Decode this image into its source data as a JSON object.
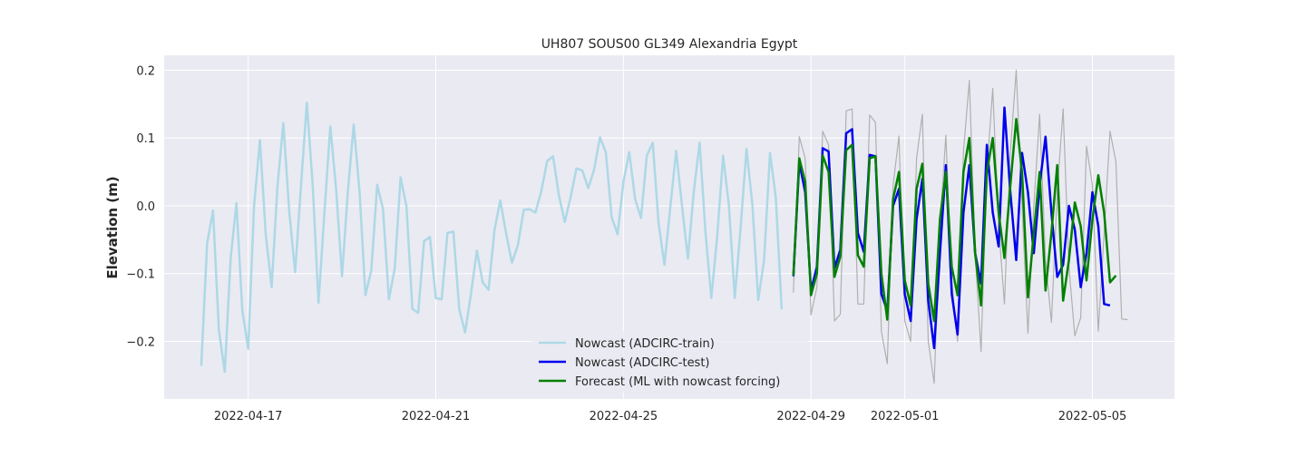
{
  "chart_data": {
    "type": "line",
    "title": "UH807 SOUS00 GL349 Alexandria Egypt",
    "xlabel": "",
    "ylabel": "Elevation (m)",
    "xlim": [
      "2022-04-15 05:00",
      "2022-05-06 18:00"
    ],
    "ylim": [
      -0.285,
      0.222
    ],
    "x_ticks": [
      "2022-04-17",
      "2022-04-21",
      "2022-04-25",
      "2022-04-29",
      "2022-05-01",
      "2022-05-05"
    ],
    "y_ticks": [
      -0.2,
      -0.1,
      0.0,
      0.1,
      0.2
    ],
    "y_tick_labels": [
      "−0.2",
      "−0.1",
      "0.0",
      "0.1",
      "0.2"
    ],
    "grid": true,
    "legend": "bottom-center",
    "series": [
      {
        "name": "Nowcast (ADCIRC-train)",
        "color": "#add8e6",
        "linewidth": 2.5,
        "start": "2022-04-16 00:00",
        "step_hours": 3,
        "y": [
          -0.236,
          -0.055,
          -0.007,
          -0.183,
          -0.245,
          -0.078,
          0.004,
          -0.155,
          -0.211,
          -0.001,
          0.097,
          -0.042,
          -0.12,
          0.03,
          0.122,
          -0.008,
          -0.098,
          0.028,
          0.152,
          0.03,
          -0.143,
          -0.01,
          0.117,
          0.025,
          -0.104,
          0.02,
          0.12,
          0.02,
          -0.132,
          -0.095,
          0.031,
          -0.005,
          -0.138,
          -0.092,
          0.042,
          -0.001,
          -0.152,
          -0.158,
          -0.052,
          -0.046,
          -0.136,
          -0.138,
          -0.04,
          -0.038,
          -0.153,
          -0.187,
          -0.13,
          -0.066,
          -0.113,
          -0.124,
          -0.036,
          0.008,
          -0.041,
          -0.084,
          -0.058,
          -0.006,
          -0.005,
          -0.01,
          0.022,
          0.066,
          0.073,
          0.015,
          -0.024,
          0.013,
          0.055,
          0.052,
          0.026,
          0.053,
          0.101,
          0.079,
          -0.017,
          -0.042,
          0.035,
          0.079,
          0.01,
          -0.018,
          0.074,
          0.093,
          -0.025,
          -0.087,
          -0.002,
          0.081,
          0.0,
          -0.078,
          0.02,
          0.093,
          -0.04,
          -0.136,
          -0.045,
          0.074,
          0.0,
          -0.136,
          -0.032,
          0.084,
          0.002,
          -0.139,
          -0.08,
          0.078,
          0.012,
          -0.153
        ]
      },
      {
        "name": "Nowcast (ADCIRC-test)",
        "color": "#0000ee",
        "linewidth": 2.5,
        "start": "2022-04-28 15:00",
        "step_hours": 3,
        "y": [
          -0.104,
          0.064,
          0.02,
          -0.125,
          -0.09,
          0.085,
          0.08,
          -0.092,
          -0.065,
          0.107,
          0.113,
          -0.04,
          -0.068,
          0.075,
          0.073,
          -0.13,
          -0.155,
          0.0,
          0.025,
          -0.13,
          -0.17,
          -0.02,
          0.04,
          -0.14,
          -0.21,
          -0.07,
          0.06,
          -0.13,
          -0.19,
          -0.01,
          0.06,
          -0.07,
          -0.115,
          0.09,
          -0.01,
          -0.06,
          0.145,
          0.02,
          -0.08,
          0.078,
          0.02,
          -0.07,
          0.03,
          0.102,
          -0.01,
          -0.105,
          -0.087,
          0.0,
          -0.035,
          -0.12,
          -0.07,
          0.02,
          -0.03,
          -0.145,
          -0.147
        ]
      },
      {
        "name": "Forecast (ML with nowcast forcing)",
        "color": "#008000",
        "linewidth": 2.5,
        "start": "2022-04-28 15:00",
        "step_hours": 3,
        "y": [
          -0.103,
          0.07,
          0.035,
          -0.132,
          -0.1,
          0.074,
          0.05,
          -0.105,
          -0.075,
          0.082,
          0.09,
          -0.073,
          -0.09,
          0.07,
          0.073,
          -0.1,
          -0.168,
          0.01,
          0.05,
          -0.11,
          -0.147,
          0.025,
          0.062,
          -0.115,
          -0.17,
          -0.02,
          0.05,
          -0.09,
          -0.132,
          0.05,
          0.1,
          -0.07,
          -0.147,
          0.05,
          0.1,
          -0.01,
          -0.077,
          0.03,
          0.128,
          0.05,
          -0.135,
          -0.04,
          0.05,
          -0.125,
          -0.04,
          0.06,
          -0.14,
          -0.08,
          0.005,
          -0.03,
          -0.11,
          -0.02,
          0.045,
          -0.01,
          -0.113,
          -0.103
        ]
      },
      {
        "name": "",
        "color": "#b0b0b0",
        "linewidth": 1.2,
        "start": "2022-04-28 15:00",
        "step_hours": 3,
        "y": [
          -0.128,
          0.102,
          0.07,
          -0.161,
          -0.12,
          0.11,
          0.09,
          -0.17,
          -0.16,
          0.14,
          0.143,
          -0.145,
          -0.145,
          0.134,
          0.123,
          -0.185,
          -0.233,
          0.03,
          0.103,
          -0.17,
          -0.2,
          0.07,
          0.135,
          -0.2,
          -0.262,
          -0.03,
          0.104,
          -0.11,
          -0.2,
          0.08,
          0.185,
          -0.07,
          -0.215,
          0.05,
          0.173,
          -0.03,
          -0.145,
          0.08,
          0.2,
          0.0,
          -0.188,
          0.0,
          0.135,
          -0.08,
          -0.172,
          0.02,
          0.143,
          -0.09,
          -0.192,
          -0.165,
          0.088,
          0.03,
          -0.185,
          -0.04,
          0.11,
          0.065,
          -0.167,
          -0.168
        ]
      }
    ]
  }
}
